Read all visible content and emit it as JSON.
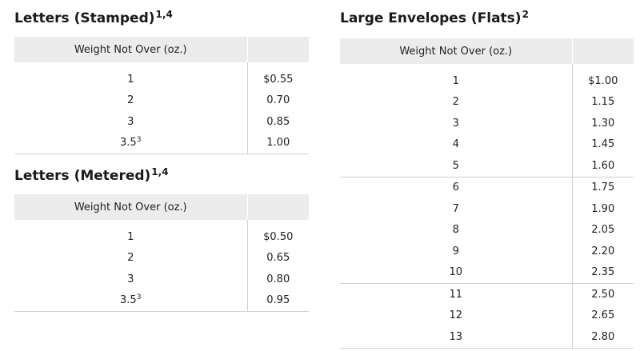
{
  "stamped": {
    "title": "Letters (Stamped)",
    "title_sup": "1,4",
    "header_weight": "Weight Not Over (oz.)",
    "header_price": "",
    "rows": [
      {
        "weight": "1",
        "sup": "",
        "price": "$0.55"
      },
      {
        "weight": "2",
        "sup": "",
        "price": "0.70"
      },
      {
        "weight": "3",
        "sup": "",
        "price": "0.85"
      },
      {
        "weight": "3.5",
        "sup": "3",
        "price": "1.00"
      }
    ]
  },
  "metered": {
    "title": "Letters (Metered)",
    "title_sup": "1,4",
    "header_weight": "Weight Not Over (oz.)",
    "header_price": "",
    "rows": [
      {
        "weight": "1",
        "sup": "",
        "price": "$0.50"
      },
      {
        "weight": "2",
        "sup": "",
        "price": "0.65"
      },
      {
        "weight": "3",
        "sup": "",
        "price": "0.80"
      },
      {
        "weight": "3.5",
        "sup": "3",
        "price": "0.95"
      }
    ]
  },
  "flats": {
    "title": "Large Envelopes (Flats)",
    "title_sup": "2",
    "header_weight": "Weight Not Over (oz.)",
    "header_price": "",
    "rows": [
      {
        "weight": "1",
        "price": "$1.00"
      },
      {
        "weight": "2",
        "price": "1.15"
      },
      {
        "weight": "3",
        "price": "1.30"
      },
      {
        "weight": "4",
        "price": "1.45"
      },
      {
        "weight": "5",
        "price": "1.60"
      },
      {
        "weight": "6",
        "price": "1.75"
      },
      {
        "weight": "7",
        "price": "1.90"
      },
      {
        "weight": "8",
        "price": "2.05"
      },
      {
        "weight": "9",
        "price": "2.20"
      },
      {
        "weight": "10",
        "price": "2.35"
      },
      {
        "weight": "11",
        "price": "2.50"
      },
      {
        "weight": "12",
        "price": "2.65"
      },
      {
        "weight": "13",
        "price": "2.80"
      }
    ]
  }
}
